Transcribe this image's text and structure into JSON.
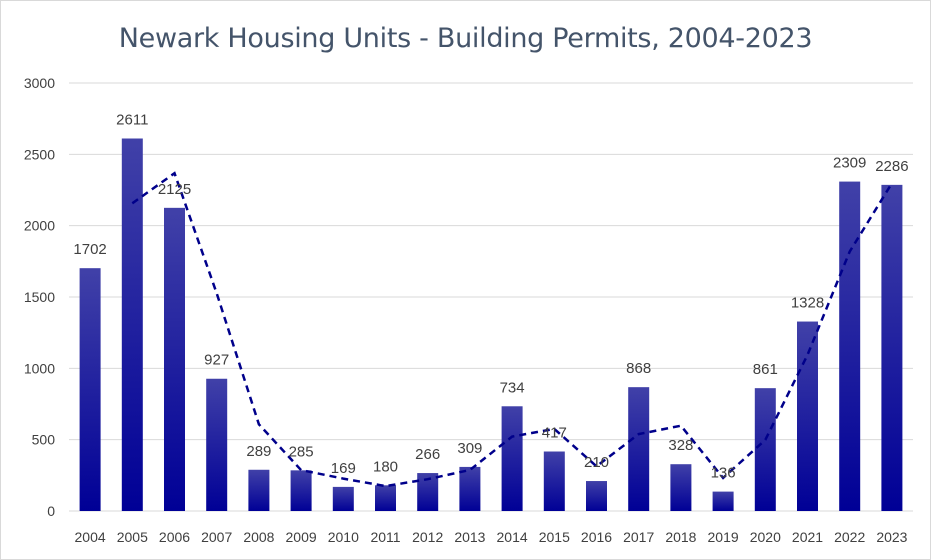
{
  "chart_data": {
    "type": "bar",
    "title": "Newark Housing Units - Building Permits, 2004-2023",
    "categories": [
      "2004",
      "2005",
      "2006",
      "2007",
      "2008",
      "2009",
      "2010",
      "2011",
      "2012",
      "2013",
      "2014",
      "2015",
      "2016",
      "2017",
      "2018",
      "2019",
      "2020",
      "2021",
      "2022",
      "2023"
    ],
    "series": [
      {
        "values": [
          1702,
          2611,
          2125,
          927,
          289,
          285,
          169,
          180,
          266,
          309,
          734,
          417,
          210,
          868,
          328,
          136,
          861,
          1328,
          2309,
          2286
        ]
      }
    ],
    "trendline": {
      "type": "moving-average",
      "period": 2,
      "style": "dashed"
    },
    "ylim": [
      0,
      3000
    ],
    "yticks": [
      0,
      500,
      1000,
      1500,
      2000,
      2500,
      3000
    ],
    "grid": true,
    "legend": "none",
    "colors": {
      "bar_top": "#4141a8",
      "bar_bottom": "#000096",
      "trendline": "#00008b",
      "grid": "#d9d9d9",
      "title": "#44546a",
      "text": "#404040"
    }
  }
}
